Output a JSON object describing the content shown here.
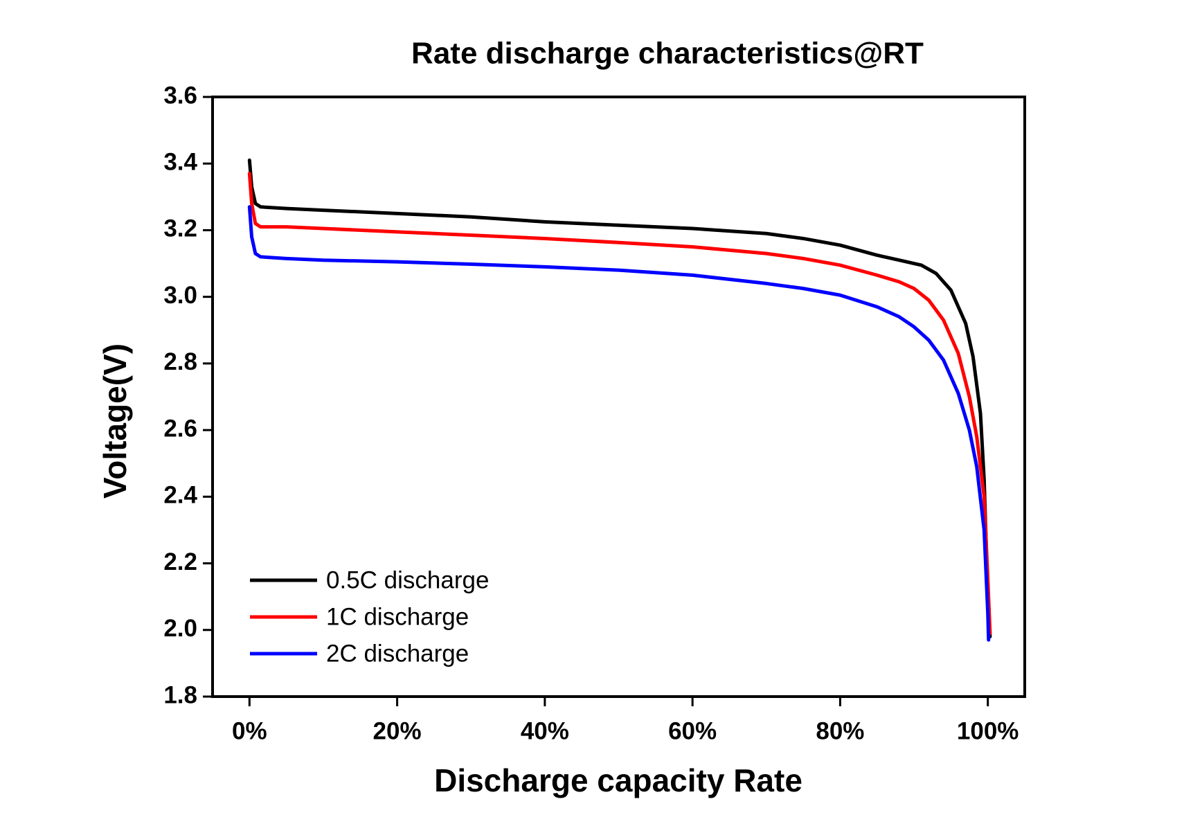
{
  "chart_data": {
    "type": "line",
    "title": "Rate discharge characteristics@RT",
    "x_label": "Discharge capacity Rate",
    "y_label": "Voltage(V)",
    "xlim": [
      -5,
      105
    ],
    "xticks": [
      {
        "value": 0,
        "label": "0%"
      },
      {
        "value": 20,
        "label": "20%"
      },
      {
        "value": 40,
        "label": "40%"
      },
      {
        "value": 60,
        "label": "60%"
      },
      {
        "value": 80,
        "label": "80%"
      },
      {
        "value": 100,
        "label": "100%"
      }
    ],
    "ylim": [
      1.8,
      3.6
    ],
    "yticks": [
      1.8,
      {
        "value": 2,
        "label": "2.0"
      },
      2.2,
      2.4,
      2.6,
      2.8,
      {
        "value": 3,
        "label": "3.0"
      },
      3.2,
      3.4,
      3.6
    ],
    "legend": "lower-left",
    "series": [
      {
        "name": "0.5C discharge",
        "color": "#000000",
        "x": [
          0,
          0.3,
          0.8,
          1.5,
          5,
          10,
          20,
          30,
          40,
          50,
          60,
          70,
          75,
          80,
          85,
          88,
          91,
          93,
          95,
          97,
          98,
          99,
          99.5,
          100,
          100.3
        ],
        "values": [
          3.41,
          3.33,
          3.28,
          3.27,
          3.265,
          3.26,
          3.25,
          3.24,
          3.225,
          3.215,
          3.205,
          3.19,
          3.175,
          3.155,
          3.125,
          3.11,
          3.095,
          3.07,
          3.02,
          2.92,
          2.82,
          2.65,
          2.45,
          2.1,
          1.98
        ]
      },
      {
        "name": "1C discharge",
        "color": "#ff0000",
        "x": [
          0,
          0.3,
          0.8,
          1.5,
          5,
          10,
          20,
          30,
          40,
          50,
          60,
          70,
          75,
          80,
          85,
          88,
          90,
          92,
          94,
          96,
          97.5,
          98.5,
          99.5,
          100,
          100.3
        ],
        "values": [
          3.37,
          3.28,
          3.22,
          3.21,
          3.21,
          3.205,
          3.195,
          3.185,
          3.175,
          3.163,
          3.15,
          3.13,
          3.115,
          3.095,
          3.065,
          3.045,
          3.025,
          2.99,
          2.93,
          2.83,
          2.7,
          2.58,
          2.4,
          2.15,
          1.99
        ]
      },
      {
        "name": "2C discharge",
        "color": "#0000ff",
        "x": [
          0,
          0.3,
          0.8,
          1.5,
          5,
          10,
          20,
          30,
          40,
          50,
          60,
          70,
          75,
          80,
          85,
          88,
          90,
          92,
          94,
          96,
          97.5,
          98.5,
          99.5,
          100,
          100.1
        ],
        "values": [
          3.27,
          3.18,
          3.13,
          3.12,
          3.115,
          3.11,
          3.105,
          3.098,
          3.09,
          3.08,
          3.065,
          3.04,
          3.025,
          3.005,
          2.97,
          2.94,
          2.91,
          2.87,
          2.81,
          2.71,
          2.6,
          2.49,
          2.3,
          2.05,
          1.97
        ]
      }
    ]
  }
}
